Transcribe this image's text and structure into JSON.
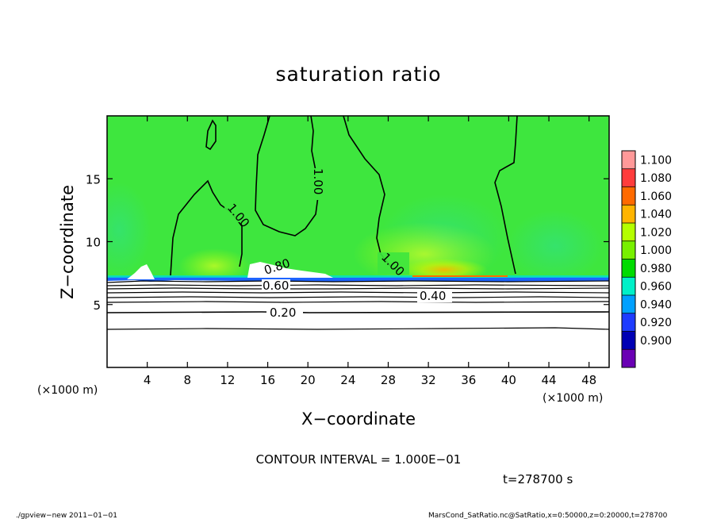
{
  "chart_data": {
    "type": "contour",
    "title": "saturation ratio",
    "xlabel": "X−coordinate",
    "ylabel": "Z−coordinate",
    "x_unit_left": "(×1000 m)",
    "x_unit_right": "(×1000 m)",
    "xlim": [
      0,
      50
    ],
    "ylim": [
      0,
      20
    ],
    "xticks": [
      4,
      8,
      12,
      16,
      20,
      24,
      28,
      32,
      36,
      40,
      44,
      48
    ],
    "yticks": [
      5,
      10,
      15
    ],
    "colorbar": {
      "levels": [
        "1.100",
        "1.080",
        "1.060",
        "1.040",
        "1.020",
        "1.000",
        "0.980",
        "0.960",
        "0.940",
        "0.920",
        "0.900"
      ],
      "colors": [
        "#ff9999",
        "#ff3c3c",
        "#ff6a00",
        "#ffb400",
        "#b4ff00",
        "#78f000",
        "#00dc00",
        "#00f0c8",
        "#00a0ff",
        "#1e3cff",
        "#0000b4",
        "#6a00b4"
      ]
    },
    "contour_labels": [
      "1.00",
      "1.00",
      "1.00",
      "0.80",
      "0.60",
      "0.40",
      "0.20"
    ],
    "contour_interval": "CONTOUR INTERVAL = 1.000E−01",
    "time_label": "t=278700 s"
  },
  "footer": {
    "left": "./gpview−new  2011−01−01",
    "right": "MarsCond_SatRatio.nc@SatRatio,x=0:50000,z=0:20000,t=278700"
  }
}
